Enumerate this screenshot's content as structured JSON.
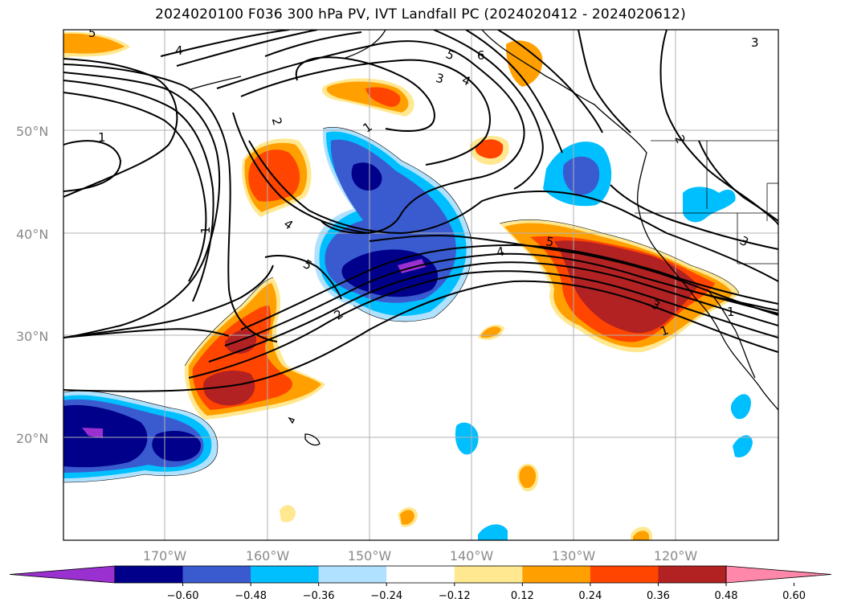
{
  "title": "2024020100 F036 300 hPa PV, IVT Landfall PC (2024020412 - 2024020612)",
  "map": {
    "lon_labels": [
      "170°W",
      "160°W",
      "150°W",
      "140°W",
      "130°W",
      "120°W"
    ],
    "lat_labels": [
      "50°N",
      "40°N",
      "30°N",
      "20°N"
    ],
    "contour_labels": [
      "5",
      "4",
      "1",
      "1",
      "2",
      "1",
      "4",
      "5",
      "2",
      "3",
      "4",
      "5",
      "6",
      "4",
      "5",
      "3",
      "1",
      "2",
      "3",
      "3",
      "1"
    ]
  },
  "colorbar": {
    "tick_labels": [
      "−0.60",
      "−0.48",
      "−0.36",
      "−0.24",
      "−0.12",
      "0.12",
      "0.24",
      "0.36",
      "0.48",
      "0.60"
    ],
    "colors": [
      "#9b30d0",
      "#00008b",
      "#3a5bd0",
      "#00bfff",
      "#b0e2ff",
      "#ffffff",
      "#ffe890",
      "#ffa000",
      "#ff4500",
      "#b22222",
      "#ff88aa"
    ]
  },
  "colors": {
    "neg_extreme": "#9b30d0",
    "neg_strong": "#00008b",
    "neg_mid": "#3a5bd0",
    "neg_light": "#00bfff",
    "neg_faint": "#b0e2ff",
    "pos_faint": "#ffe890",
    "pos_light": "#ffa000",
    "pos_mid": "#ff4500",
    "pos_strong": "#b22222",
    "pos_extreme": "#ff88aa"
  }
}
